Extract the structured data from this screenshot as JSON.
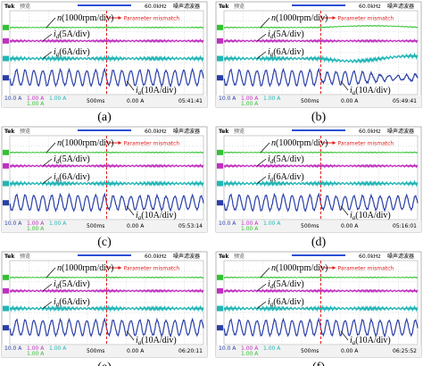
{
  "panels": [
    {
      "caption": "(a)",
      "tek": "Tek",
      "mode": "预览",
      "rate": "60.0kHz",
      "filter": "噪声滤波器",
      "n": {
        "symbol": "n",
        "scale": "(1000rpm/div)"
      },
      "id": {
        "symbol": "i",
        "sub": "d",
        "scale": "(5A/div)"
      },
      "iq": {
        "symbol": "i",
        "sub": "q",
        "scale": "(6A/div)"
      },
      "ia": {
        "symbol": "i",
        "sub": "a",
        "scale": "(10A/div)"
      },
      "event": "Parameter mismatch",
      "ch1": "10.0 A",
      "ch2": "1.00 A",
      "ch3": "1.00 A",
      "ch4": "1.00 A",
      "timebase": "500ms",
      "trigger": "0.00 A",
      "clock": "05:41:41"
    },
    {
      "caption": "(b)",
      "tek": "Tek",
      "mode": "预览",
      "rate": "60.0kHz",
      "filter": "噪声滤波器",
      "n": {
        "symbol": "n",
        "scale": "(1000rpm/div)"
      },
      "id": {
        "symbol": "i",
        "sub": "d",
        "scale": "(5A/div)"
      },
      "iq": {
        "symbol": "i",
        "sub": "q",
        "scale": "(6A/div)"
      },
      "ia": {
        "symbol": "i",
        "sub": "a",
        "scale": "(10A/div)"
      },
      "event": "Parameter mismatch",
      "ch1": "10.0 A",
      "ch2": "1.00 A",
      "ch3": "1.00 A",
      "ch4": "1.00 A",
      "timebase": "500ms",
      "trigger": "0.00 A",
      "clock": "05:49:41"
    },
    {
      "caption": "(c)",
      "tek": "Tek",
      "mode": "预览",
      "rate": "60.0kHz",
      "filter": "噪声滤波器",
      "n": {
        "symbol": "n",
        "scale": "(1000rpm/div)"
      },
      "id": {
        "symbol": "i",
        "sub": "d",
        "scale": "(5A/div)"
      },
      "iq": {
        "symbol": "i",
        "sub": "q",
        "scale": "(6A/div)"
      },
      "ia": {
        "symbol": "i",
        "sub": "a",
        "scale": "(10A/div)"
      },
      "event": "Parameter mismatch",
      "ch1": "10.0 A",
      "ch2": "1.00 A",
      "ch3": "1.00 A",
      "ch4": "1.00 A",
      "timebase": "500ms",
      "trigger": "0.00 A",
      "clock": "05:53:14"
    },
    {
      "caption": "(d)",
      "tek": "Tek",
      "mode": "预览",
      "rate": "60.0kHz",
      "filter": "噪声滤波器",
      "n": {
        "symbol": "n",
        "scale": "(1000rpm/div)"
      },
      "id": {
        "symbol": "i",
        "sub": "d",
        "scale": "(5A/div)"
      },
      "iq": {
        "symbol": "i",
        "sub": "q",
        "scale": "(6A/div)"
      },
      "ia": {
        "symbol": "i",
        "sub": "a",
        "scale": "(10A/div)"
      },
      "event": "Parameter mismatch",
      "ch1": "10.0 A",
      "ch2": "1.00 A",
      "ch3": "1.00 A",
      "ch4": "1.00 A",
      "timebase": "500ms",
      "trigger": "0.00 A",
      "clock": "05:16:01"
    },
    {
      "caption": "(e)",
      "tek": "Tek",
      "mode": "预览",
      "rate": "60.0kHz",
      "filter": "噪声滤波器",
      "n": {
        "symbol": "n",
        "scale": "(1000rpm/div)"
      },
      "id": {
        "symbol": "i",
        "sub": "d",
        "scale": "(5A/div)"
      },
      "iq": {
        "symbol": "i",
        "sub": "q",
        "scale": "(6A/div)"
      },
      "ia": {
        "symbol": "i",
        "sub": "a",
        "scale": "(10A/div)"
      },
      "event": "Parameter mismatch",
      "ch1": "10.0 A",
      "ch2": "1.00 A",
      "ch3": "1.00 A",
      "ch4": "1.00 A",
      "timebase": "500ms",
      "trigger": "0.00 A",
      "clock": "06:20:11"
    },
    {
      "caption": "(f)",
      "tek": "Tek",
      "mode": "预览",
      "rate": "60.0kHz",
      "filter": "噪声滤波器",
      "n": {
        "symbol": "n",
        "scale": "(1000rpm/div)"
      },
      "id": {
        "symbol": "i",
        "sub": "d",
        "scale": "(5A/div)"
      },
      "iq": {
        "symbol": "i",
        "sub": "q",
        "scale": "(6A/div)"
      },
      "ia": {
        "symbol": "i",
        "sub": "a",
        "scale": "(10A/div)"
      },
      "event": "Parameter mismatch",
      "ch1": "10.0 A",
      "ch2": "1.00 A",
      "ch3": "1.00 A",
      "ch4": "1.00 A",
      "timebase": "500ms",
      "trigger": "0.00 A",
      "clock": "06:25:52"
    }
  ]
}
